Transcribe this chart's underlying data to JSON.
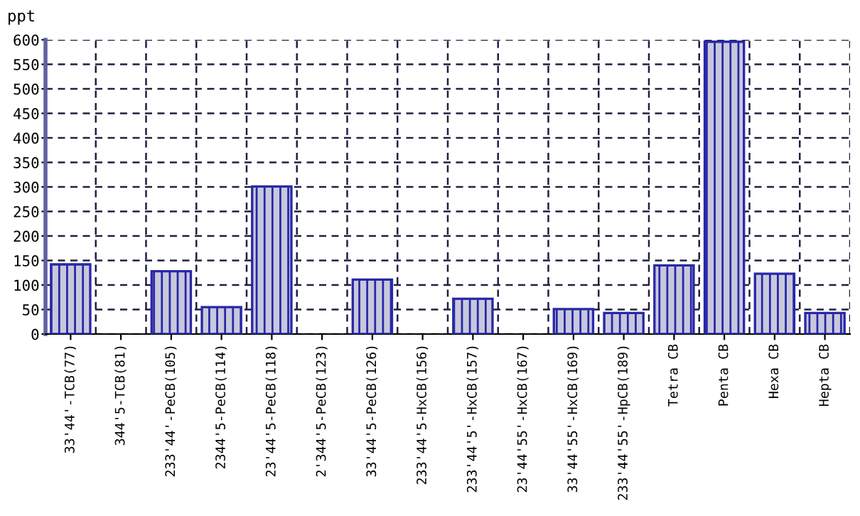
{
  "chart_data": {
    "type": "bar",
    "ylabel": "ppt",
    "categories": [
      "33'44'-TCB(77)",
      "344'5-TCB(81)",
      "233'44'-PeCB(105)",
      "2344'5-PeCB(114)",
      "23'44'5-PeCB(118)",
      "2'344'5-PeCB(123)",
      "33'44'5-PeCB(126)",
      "233'44'5-HxCB(156)",
      "233'44'5'-HxCB(157)",
      "23'44'55'-HxCB(167)",
      "33'44'55'-HxCB(169)",
      "233'44'55'-HpCB(189)",
      "Tetra CB",
      "Penta CB",
      "Hexa CB",
      "Hepta CB"
    ],
    "values": [
      142,
      null,
      128,
      55,
      301,
      null,
      111,
      null,
      72,
      null,
      51,
      43,
      140,
      596,
      123,
      43
    ],
    "color": "#2828a8",
    "ylim": [
      0,
      600
    ],
    "yticks": [
      0,
      50,
      100,
      150,
      200,
      250,
      300,
      350,
      400,
      450,
      500,
      550,
      600
    ],
    "grid": true
  }
}
